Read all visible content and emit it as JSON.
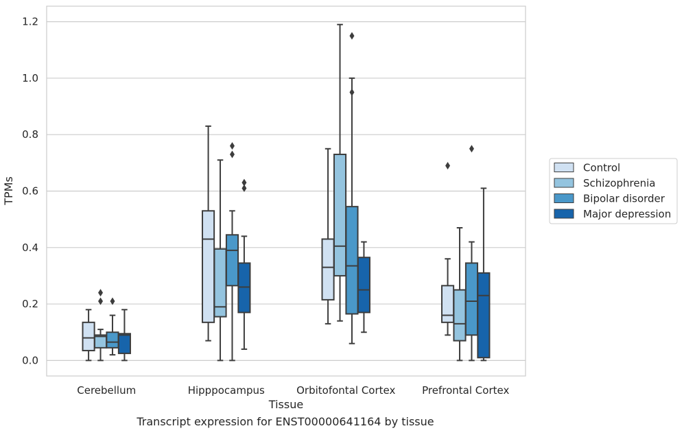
{
  "chart_data": {
    "type": "box",
    "xlabel": "Tissue",
    "ylabel": "TPMs",
    "ylim": [
      -0.055,
      1.255
    ],
    "yticks": [
      "0.0",
      "0.2",
      "0.4",
      "0.6",
      "0.8",
      "1.0",
      "1.2"
    ],
    "grid": "horizontal",
    "legend_position": "right",
    "categories": [
      "Cerebellum",
      "Hipppocampus",
      "Orbitofontal Cortex",
      "Prefrontal Cortex"
    ],
    "series": [
      {
        "name": "Control",
        "color": "#d0e1f2",
        "boxes": [
          {
            "whisker_low": 0.0,
            "q1": 0.035,
            "median": 0.08,
            "q3": 0.135,
            "whisker_high": 0.18,
            "outliers": []
          },
          {
            "whisker_low": 0.07,
            "q1": 0.135,
            "median": 0.43,
            "q3": 0.53,
            "whisker_high": 0.83,
            "outliers": []
          },
          {
            "whisker_low": 0.13,
            "q1": 0.215,
            "median": 0.33,
            "q3": 0.43,
            "whisker_high": 0.75,
            "outliers": []
          },
          {
            "whisker_low": 0.09,
            "q1": 0.135,
            "median": 0.16,
            "q3": 0.265,
            "whisker_high": 0.36,
            "outliers": [
              0.69
            ]
          }
        ]
      },
      {
        "name": "Schizophrenia",
        "color": "#94c4df",
        "boxes": [
          {
            "whisker_low": 0.0,
            "q1": 0.045,
            "median": 0.085,
            "q3": 0.09,
            "whisker_high": 0.11,
            "outliers": [
              0.21,
              0.24
            ]
          },
          {
            "whisker_low": 0.0,
            "q1": 0.155,
            "median": 0.19,
            "q3": 0.395,
            "whisker_high": 0.71,
            "outliers": []
          },
          {
            "whisker_low": 0.14,
            "q1": 0.3,
            "median": 0.405,
            "q3": 0.73,
            "whisker_high": 1.19,
            "outliers": []
          },
          {
            "whisker_low": 0.0,
            "q1": 0.07,
            "median": 0.13,
            "q3": 0.25,
            "whisker_high": 0.47,
            "outliers": []
          }
        ]
      },
      {
        "name": "Bipolar disorder",
        "color": "#4a98c9",
        "boxes": [
          {
            "whisker_low": 0.02,
            "q1": 0.045,
            "median": 0.065,
            "q3": 0.1,
            "whisker_high": 0.16,
            "outliers": [
              0.21
            ]
          },
          {
            "whisker_low": 0.0,
            "q1": 0.265,
            "median": 0.39,
            "q3": 0.445,
            "whisker_high": 0.53,
            "outliers": [
              0.73,
              0.76
            ]
          },
          {
            "whisker_low": 0.06,
            "q1": 0.165,
            "median": 0.335,
            "q3": 0.545,
            "whisker_high": 1.0,
            "outliers": [
              0.95,
              1.15
            ]
          },
          {
            "whisker_low": 0.0,
            "q1": 0.09,
            "median": 0.21,
            "q3": 0.345,
            "whisker_high": 0.42,
            "outliers": [
              0.75
            ]
          }
        ]
      },
      {
        "name": "Major depression",
        "color": "#1764ab",
        "boxes": [
          {
            "whisker_low": 0.0,
            "q1": 0.025,
            "median": 0.09,
            "q3": 0.095,
            "whisker_high": 0.18,
            "outliers": []
          },
          {
            "whisker_low": 0.04,
            "q1": 0.17,
            "median": 0.26,
            "q3": 0.345,
            "whisker_high": 0.44,
            "outliers": [
              0.61,
              0.63
            ]
          },
          {
            "whisker_low": 0.1,
            "q1": 0.17,
            "median": 0.25,
            "q3": 0.365,
            "whisker_high": 0.42,
            "outliers": []
          },
          {
            "whisker_low": 0.0,
            "q1": 0.01,
            "median": 0.23,
            "q3": 0.31,
            "whisker_high": 0.61,
            "outliers": []
          }
        ]
      }
    ]
  },
  "caption": "Transcript expression for ENST00000641164 by tissue"
}
